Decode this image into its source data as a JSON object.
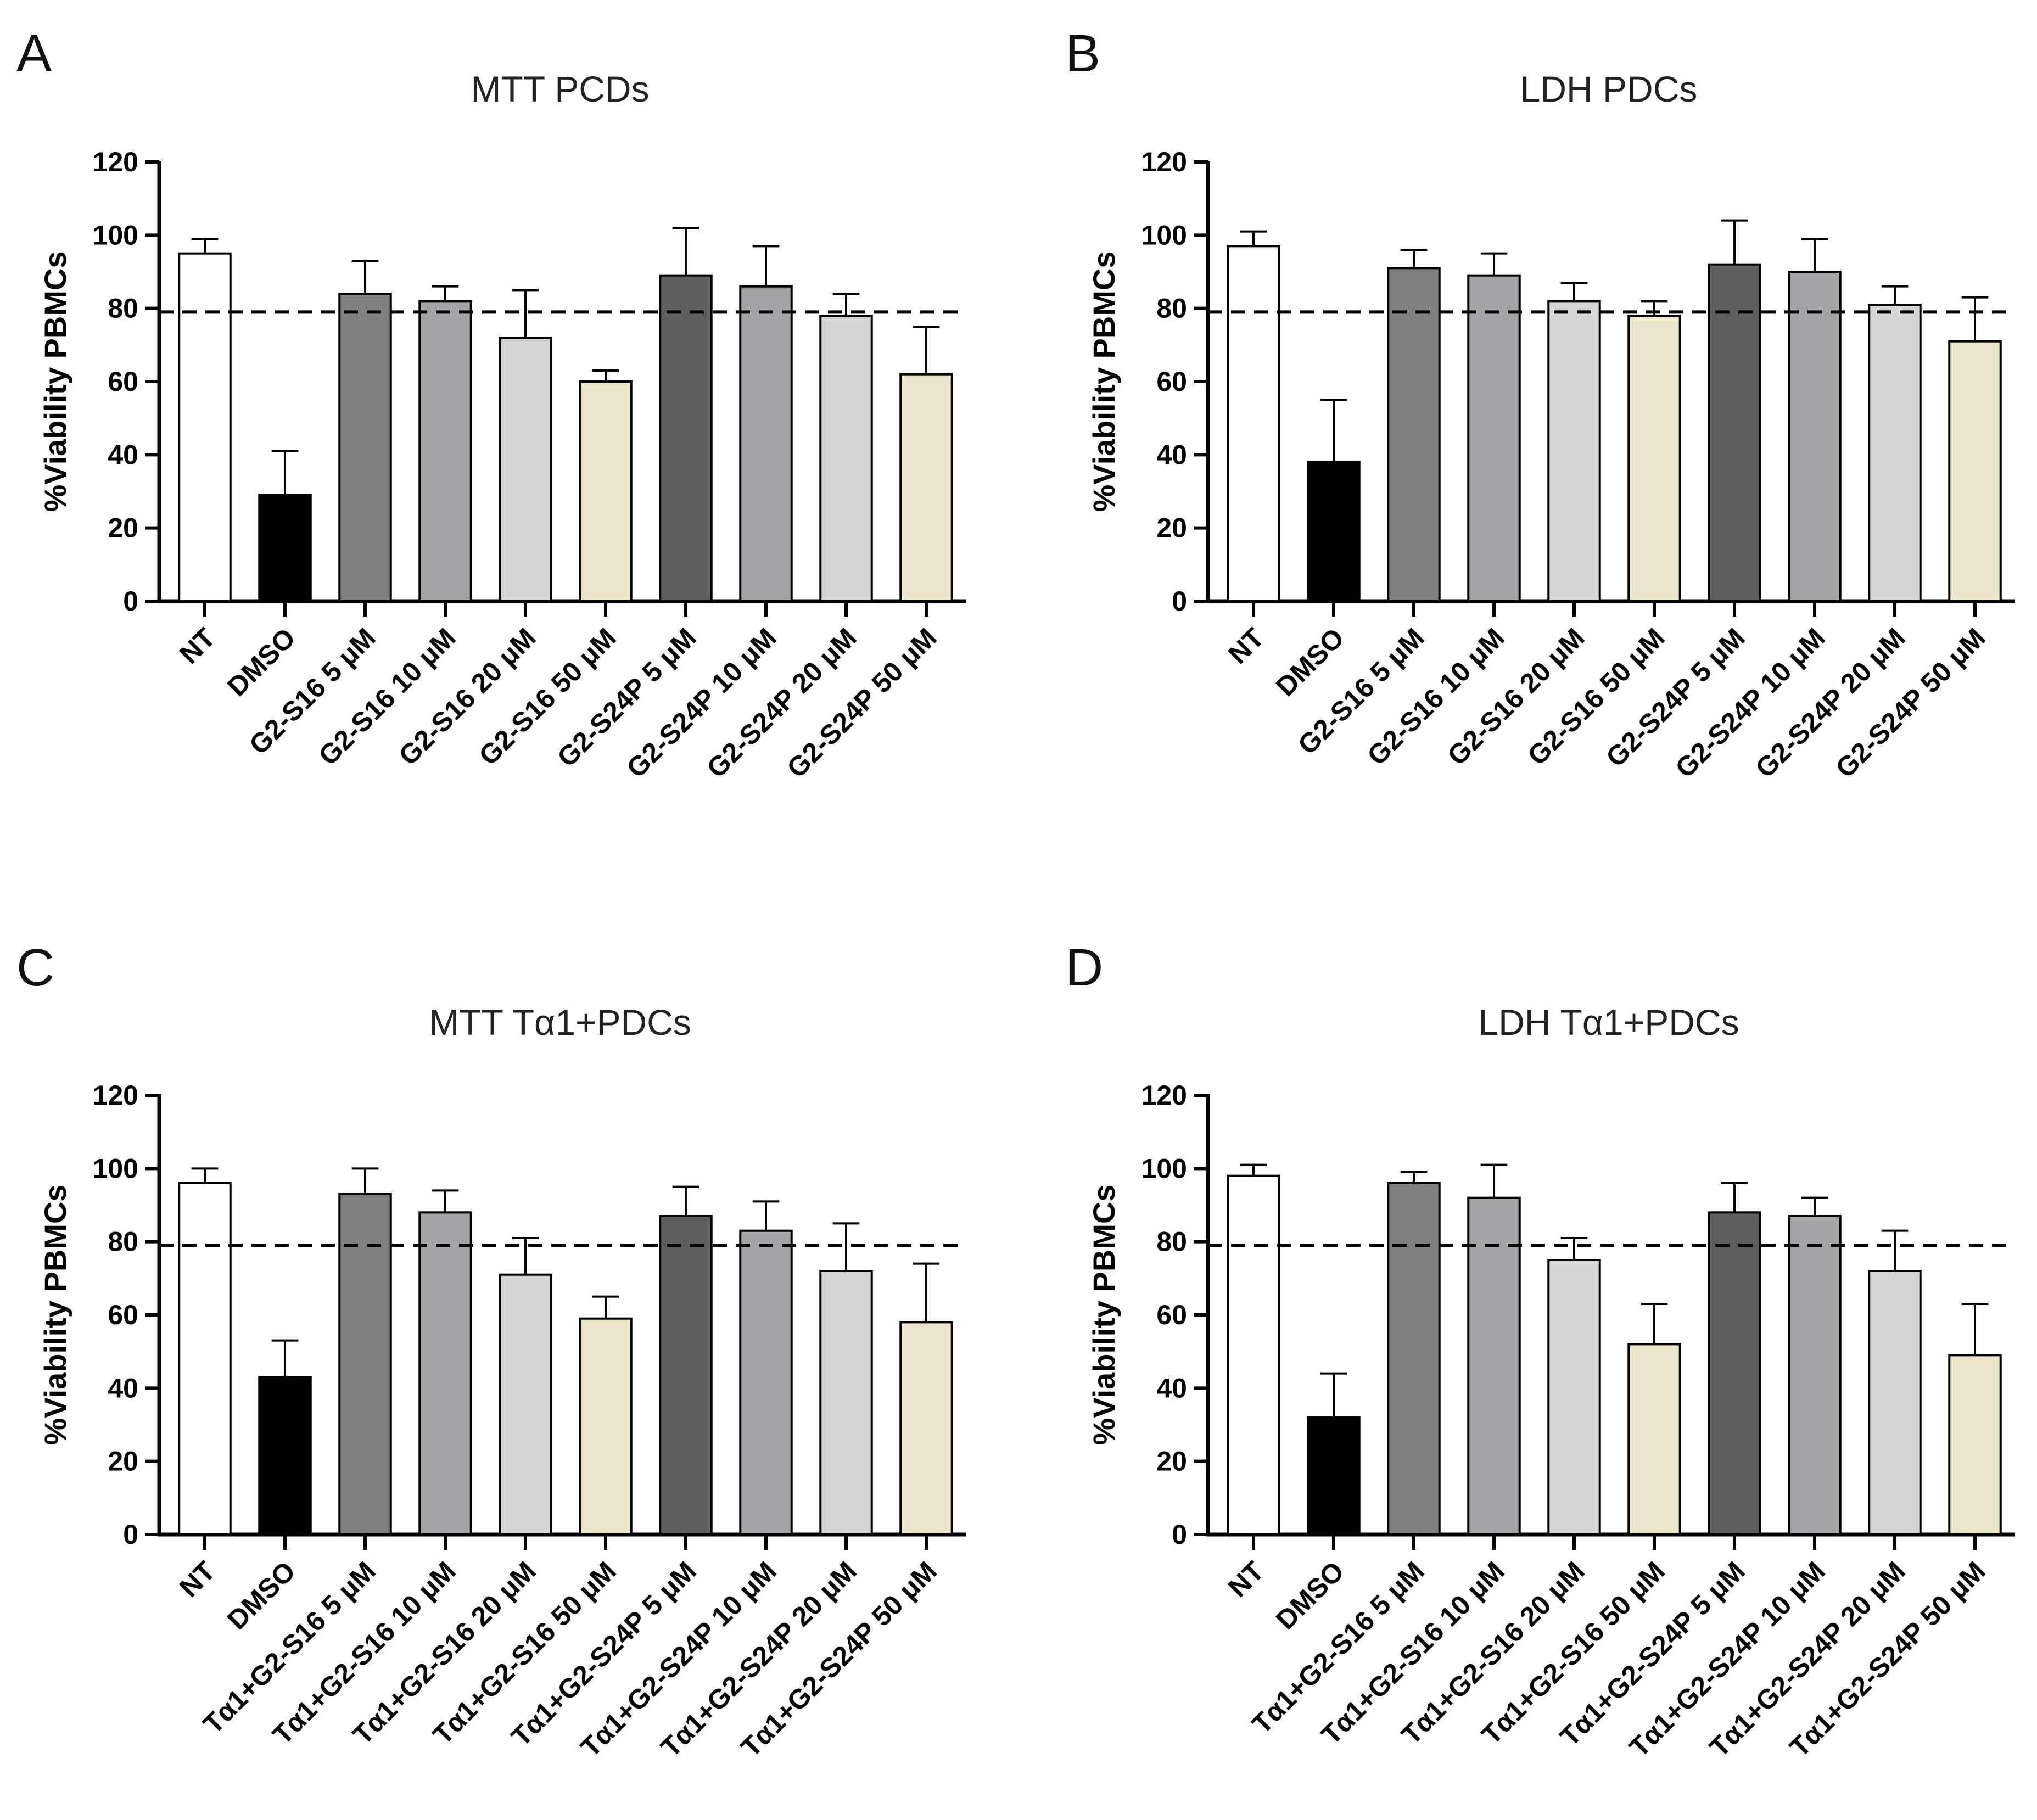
{
  "figure": {
    "reference_line": 79,
    "ylabel": "%Viability PBMCs",
    "yticks": [
      "0",
      "20",
      "40",
      "60",
      "80",
      "100",
      "120"
    ],
    "colors": {
      "NT": "#ffffff",
      "DMSO": "#000000",
      "G2-S16 5": "#808080",
      "G2-S16 10": "#a2a2a7",
      "G2-S16 20": "#d6d6d6",
      "G2-S16 50": "#ede7cc",
      "G2-S24P 5": "#5e5e5e",
      "G2-S24P 10": "#a2a2a7",
      "G2-S24P 20": "#d6d6d6",
      "G2-S24P 50": "#ede7cc"
    }
  },
  "chart_data": [
    {
      "panel": "A",
      "type": "bar",
      "title": "MTT PCDs",
      "ylabel": "%Viability PBMCs",
      "ylim": [
        0,
        120
      ],
      "categories": [
        "NT",
        "DMSO",
        "G2-S16 5 μM",
        "G2-S16 10 μM",
        "G2-S16 20 μM",
        "G2-S16 50 μM",
        "G2-S24P 5 μM",
        "G2-S24P 10 μM",
        "G2-S24P 20 μM",
        "G2-S24P 50 μM"
      ],
      "values": [
        95,
        29,
        84,
        82,
        72,
        60,
        89,
        86,
        78,
        62
      ],
      "error": [
        4,
        12,
        9,
        4,
        13,
        3,
        13,
        11,
        6,
        13
      ],
      "reference_line": 79
    },
    {
      "panel": "B",
      "type": "bar",
      "title": "LDH PDCs",
      "ylabel": "%Viability PBMCs",
      "ylim": [
        0,
        120
      ],
      "categories": [
        "NT",
        "DMSO",
        "G2-S16 5 μM",
        "G2-S16 10 μM",
        "G2-S16 20 μM",
        "G2-S16 50 μM",
        "G2-S24P 5 μM",
        "G2-S24P 10 μM",
        "G2-S24P 20 μM",
        "G2-S24P 50 μM"
      ],
      "values": [
        97,
        38,
        91,
        89,
        82,
        78,
        92,
        90,
        81,
        71
      ],
      "error": [
        4,
        17,
        5,
        6,
        5,
        4,
        12,
        9,
        5,
        12
      ],
      "reference_line": 79
    },
    {
      "panel": "C",
      "type": "bar",
      "title": "MTT Tα1+PDCs",
      "ylabel": "%Viability PBMCs",
      "ylim": [
        0,
        120
      ],
      "categories": [
        "NT",
        "DMSO",
        "Tα1+G2-S16 5 μM",
        "Tα1+G2-S16 10 μM",
        "Tα1+G2-S16 20 μM",
        "Tα1+G2-S16 50 μM",
        "Tα1+G2-S24P 5 μM",
        "Tα1+G2-S24P 10 μM",
        "Tα1+G2-S24P 20 μM",
        "Tα1+G2-S24P 50 μM"
      ],
      "values": [
        96,
        43,
        93,
        88,
        71,
        59,
        87,
        83,
        72,
        58
      ],
      "error": [
        4,
        10,
        7,
        6,
        10,
        6,
        8,
        8,
        13,
        16
      ],
      "reference_line": 79
    },
    {
      "panel": "D",
      "type": "bar",
      "title": "LDH Tα1+PDCs",
      "ylabel": "%Viability PBMCs",
      "ylim": [
        0,
        120
      ],
      "categories": [
        "NT",
        "DMSO",
        "Tα1+G2-S16 5 μM",
        "Tα1+G2-S16 10 μM",
        "Tα1+G2-S16 20 μM",
        "Tα1+G2-S16 50 μM",
        "Tα1+G2-S24P 5 μM",
        "Tα1+G2-S24P 10 μM",
        "Tα1+G2-S24P 20 μM",
        "Tα1+G2-S24P 50 μM"
      ],
      "values": [
        98,
        32,
        96,
        92,
        75,
        52,
        88,
        87,
        72,
        49
      ],
      "error": [
        3,
        12,
        3,
        9,
        6,
        11,
        8,
        5,
        11,
        14
      ],
      "reference_line": 79
    }
  ]
}
